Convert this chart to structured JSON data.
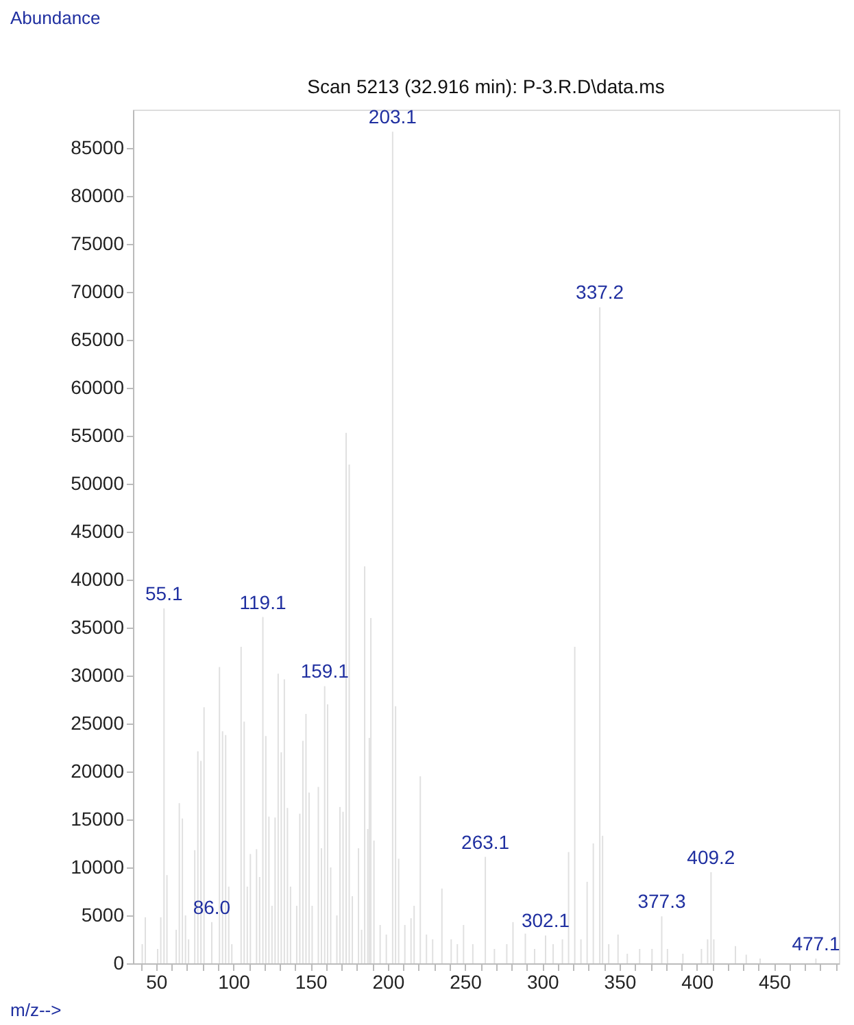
{
  "chart_data": {
    "type": "bar",
    "title": "Scan 5213 (32.916 min): P-3.R.D\\data.ms",
    "xlabel": "m/z-->",
    "ylabel": "Abundance",
    "x": [
      41,
      43,
      51,
      53,
      55.1,
      57,
      63,
      65,
      67,
      69,
      71,
      75,
      77,
      79,
      81,
      86.0,
      91,
      93,
      95,
      97,
      99,
      105,
      107,
      109,
      111,
      115,
      117,
      119.1,
      121,
      123,
      125,
      127,
      129,
      131,
      133,
      135,
      137,
      141,
      143,
      145,
      147,
      149,
      151,
      155,
      157,
      159.1,
      161,
      163,
      167,
      169,
      171,
      173,
      175,
      177,
      181,
      183,
      185,
      187,
      188,
      189,
      191,
      195,
      199,
      203.1,
      205,
      207,
      211,
      215,
      217,
      221,
      225,
      229,
      235,
      241,
      245,
      249,
      255,
      263.1,
      269,
      277,
      281,
      289,
      295,
      302.1,
      307,
      313,
      317,
      321,
      325,
      329,
      333,
      337.2,
      339,
      343,
      349,
      355,
      363,
      371,
      377.3,
      381,
      391,
      403,
      407,
      409.2,
      411,
      425,
      432,
      441,
      477.1
    ],
    "values": [
      2000,
      4800,
      1500,
      4800,
      37000,
      9200,
      3500,
      16700,
      15100,
      5000,
      2500,
      11800,
      22100,
      21100,
      26700,
      4300,
      30900,
      24200,
      23800,
      8000,
      2000,
      33000,
      25200,
      8000,
      11400,
      11900,
      9000,
      36100,
      23700,
      15300,
      6000,
      15200,
      30200,
      22000,
      29600,
      16200,
      8000,
      6000,
      15600,
      23200,
      26000,
      17800,
      6000,
      18400,
      12000,
      28900,
      27000,
      10000,
      5000,
      16300,
      15800,
      55300,
      52000,
      7000,
      12000,
      3500,
      41400,
      14000,
      23500,
      36000,
      12800,
      4000,
      3000,
      86700,
      26800,
      10900,
      4000,
      4700,
      6000,
      19500,
      3000,
      2500,
      7800,
      2500,
      2000,
      4000,
      2000,
      11100,
      1500,
      2000,
      4300,
      3100,
      1500,
      2900,
      2000,
      2500,
      11600,
      33000,
      2500,
      8500,
      12500,
      68400,
      13300,
      2000,
      3000,
      1000,
      1500,
      1500,
      4900,
      1500,
      1000,
      1500,
      2500,
      9500,
      2500,
      1800,
      900,
      500,
      500
    ],
    "color": "#e0e0e0",
    "xlim": [
      35,
      492
    ],
    "xticks": [
      {
        "value": 40,
        "label": null
      },
      50,
      {
        "value": 60,
        "label": null
      },
      {
        "value": 70,
        "label": null
      },
      {
        "value": 80,
        "label": null
      },
      {
        "value": 90,
        "label": null
      },
      100,
      {
        "value": 110,
        "label": null
      },
      {
        "value": 120,
        "label": null
      },
      {
        "value": 130,
        "label": null
      },
      {
        "value": 140,
        "label": null
      },
      150,
      {
        "value": 160,
        "label": null
      },
      {
        "value": 170,
        "label": null
      },
      {
        "value": 180,
        "label": null
      },
      {
        "value": 190,
        "label": null
      },
      200,
      {
        "value": 210,
        "label": null
      },
      {
        "value": 220,
        "label": null
      },
      {
        "value": 230,
        "label": null
      },
      {
        "value": 240,
        "label": null
      },
      250,
      {
        "value": 260,
        "label": null
      },
      {
        "value": 270,
        "label": null
      },
      {
        "value": 280,
        "label": null
      },
      {
        "value": 290,
        "label": null
      },
      300,
      {
        "value": 310,
        "label": null
      },
      {
        "value": 320,
        "label": null
      },
      {
        "value": 330,
        "label": null
      },
      {
        "value": 340,
        "label": null
      },
      350,
      {
        "value": 360,
        "label": null
      },
      {
        "value": 370,
        "label": null
      },
      {
        "value": 380,
        "label": null
      },
      {
        "value": 390,
        "label": null
      },
      400,
      {
        "value": 410,
        "label": null
      },
      {
        "value": 420,
        "label": null
      },
      {
        "value": 430,
        "label": null
      },
      {
        "value": 440,
        "label": null
      },
      450,
      {
        "value": 460,
        "label": null
      },
      {
        "value": 470,
        "label": null
      },
      {
        "value": 480,
        "label": null
      },
      {
        "value": 490,
        "label": null
      }
    ],
    "ylim": [
      0,
      89000
    ],
    "yticks": [
      0,
      5000,
      10000,
      15000,
      20000,
      25000,
      30000,
      35000,
      40000,
      45000,
      50000,
      55000,
      60000,
      65000,
      70000,
      75000,
      80000,
      85000
    ],
    "grid": false,
    "annotations": [
      {
        "text": "55.1",
        "x": 55.1,
        "y": 37000
      },
      {
        "text": "86.0",
        "x": 86.0,
        "y": 4300
      },
      {
        "text": "119.1",
        "x": 119.1,
        "y": 36100
      },
      {
        "text": "159.1",
        "x": 159.1,
        "y": 28900
      },
      {
        "text": "203.1",
        "x": 203.1,
        "y": 86700
      },
      {
        "text": "263.1",
        "x": 263.1,
        "y": 11100
      },
      {
        "text": "302.1",
        "x": 302.1,
        "y": 2900
      },
      {
        "text": "337.2",
        "x": 337.2,
        "y": 68400
      },
      {
        "text": "377.3",
        "x": 377.3,
        "y": 4900
      },
      {
        "text": "409.2",
        "x": 409.2,
        "y": 9500
      },
      {
        "text": "477.1",
        "x": 477.1,
        "y": 500
      }
    ]
  }
}
